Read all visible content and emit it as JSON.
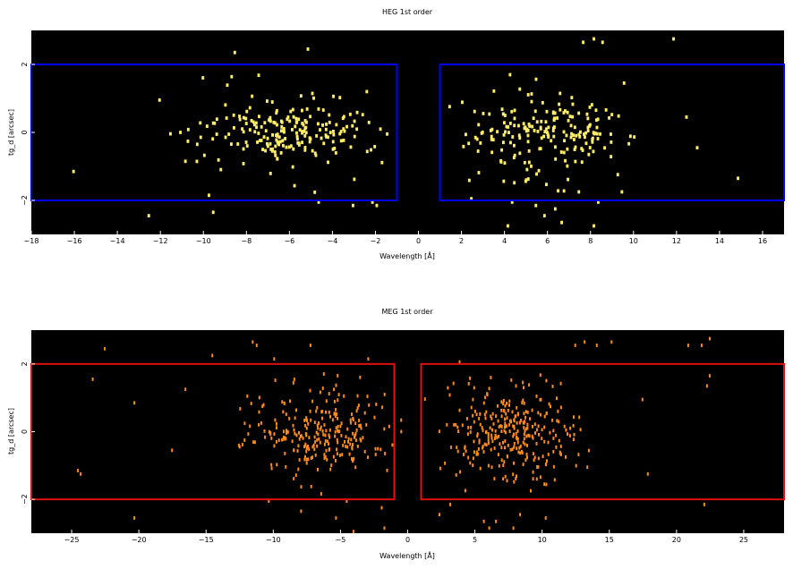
{
  "chart_data": [
    {
      "type": "scatter",
      "title": "HEG 1st order",
      "xlabel": "Wavelength [Å]",
      "ylabel": "tg_d [arcsec]",
      "xlim": [
        -18,
        17
      ],
      "ylim": [
        -3,
        3
      ],
      "xticks": [
        -18,
        -16,
        -14,
        -12,
        -10,
        -8,
        -6,
        -4,
        -2,
        0,
        2,
        4,
        6,
        8,
        10,
        12,
        14,
        16
      ],
      "xtick_labels": [
        "−18",
        "−16",
        "−14",
        "−12",
        "−10",
        "−8",
        "−6",
        "−4",
        "−2",
        "0",
        "2",
        "4",
        "6",
        "8",
        "10",
        "12",
        "14",
        "16"
      ],
      "yticks": [
        -2,
        0,
        2
      ],
      "ytick_labels": [
        "−2",
        "0",
        "2"
      ],
      "background": "#000000",
      "point_color": "#ffee66",
      "region_color": "#0000ff",
      "regions": [
        {
          "x": [
            -18,
            -1
          ],
          "y": [
            -2,
            2
          ]
        },
        {
          "x": [
            1,
            17
          ],
          "y": [
            -2,
            2
          ]
        }
      ],
      "clusters": [
        {
          "x_range": [
            -11,
            -1.5
          ],
          "core_sd": [
            2.2,
            0.4
          ],
          "count": 210
        },
        {
          "x_range": [
            2,
            10
          ],
          "core_sd": [
            1.8,
            0.45
          ],
          "count": 200
        }
      ],
      "sparse_points": [
        [
          -16.1,
          -1.1
        ],
        [
          -12.6,
          -2.4
        ],
        [
          -12.1,
          1.0
        ],
        [
          -9.6,
          -2.3
        ],
        [
          -9.8,
          -1.8
        ],
        [
          -8.6,
          2.4
        ],
        [
          -5.2,
          2.5
        ],
        [
          -4.7,
          -2.0
        ],
        [
          -3.1,
          -2.1
        ],
        [
          -2.2,
          -2.0
        ],
        [
          -2.0,
          -2.1
        ],
        [
          2.4,
          -1.9
        ],
        [
          4.3,
          -2.0
        ],
        [
          4.1,
          -2.7
        ],
        [
          4.5,
          -3.1
        ],
        [
          5.4,
          -2.1
        ],
        [
          5.8,
          -2.4
        ],
        [
          6.3,
          -2.2
        ],
        [
          6.6,
          -2.6
        ],
        [
          7.4,
          -1.7
        ],
        [
          8.1,
          -2.7
        ],
        [
          8.3,
          -2.0
        ],
        [
          9.4,
          -1.7
        ],
        [
          8.1,
          2.8
        ],
        [
          8.5,
          2.7
        ],
        [
          7.6,
          2.7
        ],
        [
          9.5,
          1.5
        ],
        [
          12.4,
          0.5
        ],
        [
          12.9,
          -0.4
        ],
        [
          11.8,
          2.8
        ],
        [
          14.8,
          -1.3
        ]
      ]
    },
    {
      "type": "scatter",
      "title": "MEG 1st order",
      "xlabel": "Wavelength [Å]",
      "ylabel": "tg_d [arcsec]",
      "xlim": [
        -28,
        28
      ],
      "ylim": [
        -3,
        3
      ],
      "xticks": [
        -25,
        -20,
        -15,
        -10,
        -5,
        0,
        5,
        10,
        15,
        20,
        25
      ],
      "xtick_labels": [
        "−25",
        "−20",
        "−15",
        "−10",
        "−5",
        "0",
        "5",
        "10",
        "15",
        "20",
        "25"
      ],
      "yticks": [
        -2,
        0,
        2
      ],
      "ytick_labels": [
        "−2",
        "0",
        "2"
      ],
      "background": "#000000",
      "point_color": "#ff8c1a",
      "region_color": "#e01010",
      "regions": [
        {
          "x": [
            -28,
            -1
          ],
          "y": [
            -2,
            2
          ]
        },
        {
          "x": [
            1,
            28
          ],
          "y": [
            -2,
            2
          ]
        }
      ],
      "clusters": [
        {
          "x_range": [
            -12,
            -1.5
          ],
          "core_sd": [
            2.6,
            0.55
          ],
          "count": 260
        },
        {
          "x_range": [
            2,
            13
          ],
          "core_sd": [
            2.4,
            0.6
          ],
          "count": 300
        }
      ],
      "sparse_points": [
        [
          -24.6,
          -1.1
        ],
        [
          -24.4,
          -1.2
        ],
        [
          -23.5,
          1.6
        ],
        [
          -22.6,
          2.5
        ],
        [
          -20.4,
          -2.5
        ],
        [
          -20.4,
          0.9
        ],
        [
          -17.6,
          -0.5
        ],
        [
          -16.6,
          1.3
        ],
        [
          -14.6,
          2.3
        ],
        [
          -12.2,
          -0.2
        ],
        [
          -12.0,
          1.1
        ],
        [
          -11.6,
          2.7
        ],
        [
          -11.3,
          2.6
        ],
        [
          -10.4,
          -2.0
        ],
        [
          -10.0,
          2.2
        ],
        [
          -8.0,
          -2.3
        ],
        [
          -7.3,
          2.6
        ],
        [
          -5.4,
          -2.5
        ],
        [
          -4.6,
          -2.0
        ],
        [
          -4.1,
          -2.9
        ],
        [
          -3.0,
          2.2
        ],
        [
          -2.0,
          -2.2
        ],
        [
          -1.8,
          -2.8
        ],
        [
          2.3,
          -2.4
        ],
        [
          3.1,
          -2.1
        ],
        [
          5.6,
          -2.6
        ],
        [
          6.0,
          -2.8
        ],
        [
          6.5,
          -2.6
        ],
        [
          7.8,
          -2.8
        ],
        [
          8.3,
          -2.4
        ],
        [
          10.1,
          -1.5
        ],
        [
          10.2,
          -2.5
        ],
        [
          11.3,
          -0.6
        ],
        [
          12.4,
          2.6
        ],
        [
          13.1,
          2.7
        ],
        [
          13.3,
          -1.0
        ],
        [
          14.0,
          2.6
        ],
        [
          15.1,
          2.7
        ],
        [
          17.4,
          1.0
        ],
        [
          17.8,
          -1.2
        ],
        [
          20.8,
          2.6
        ],
        [
          22.0,
          -2.1
        ],
        [
          22.2,
          1.4
        ],
        [
          22.4,
          1.7
        ],
        [
          21.8,
          2.6
        ],
        [
          22.4,
          2.8
        ]
      ]
    }
  ]
}
